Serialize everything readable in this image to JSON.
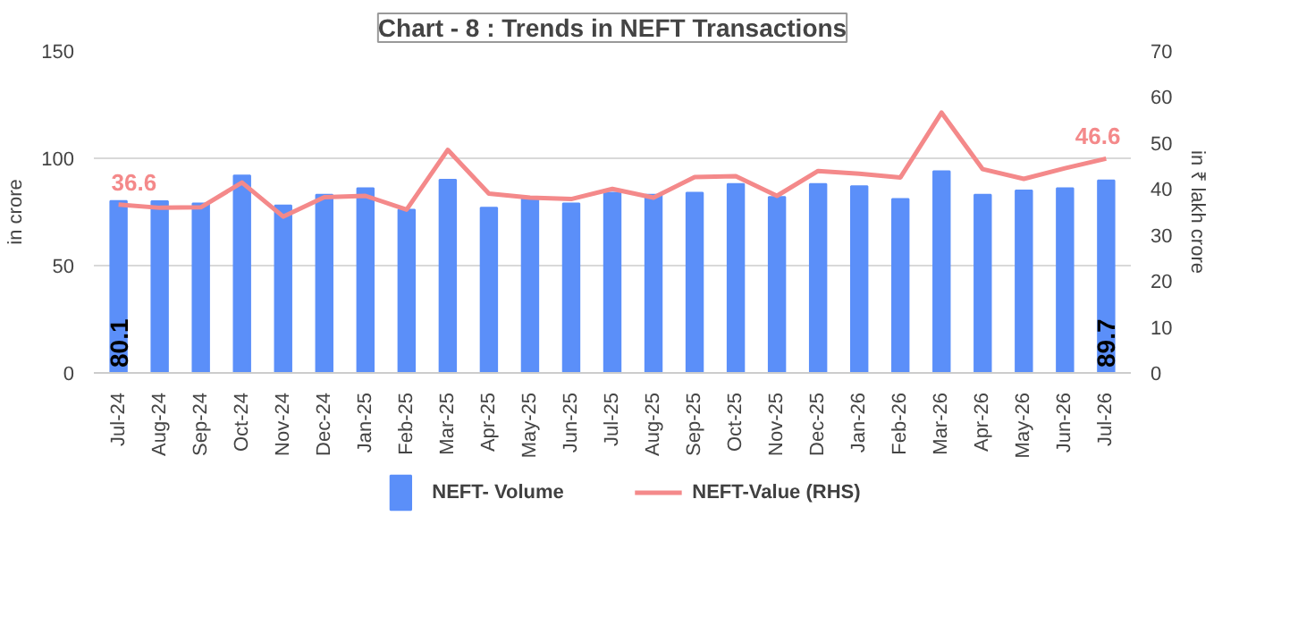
{
  "chart_data": {
    "type": "bar",
    "title": "Chart - 8 : Trends in NEFT Transactions",
    "ylabel": "in crore",
    "y2label": "in ₹ lakh crore",
    "categories": [
      "Jul-24",
      "Aug-24",
      "Sep-24",
      "Oct-24",
      "Nov-24",
      "Dec-24",
      "Jan-25",
      "Feb-25",
      "Mar-25",
      "Apr-25",
      "May-25",
      "Jun-25",
      "Jul-25",
      "Aug-25",
      "Sep-25",
      "Oct-25",
      "Nov-25",
      "Dec-25",
      "Jan-26",
      "Feb-26",
      "Mar-26",
      "Apr-26",
      "May-26",
      "Jun-26",
      "Jul-26"
    ],
    "series": [
      {
        "name": "NEFT- Volume",
        "color": "#5b8ff9",
        "values": [
          80.1,
          80,
          79,
          92,
          78,
          83,
          86,
          76,
          90,
          77,
          81,
          79,
          84,
          83,
          84,
          88,
          82,
          88,
          87,
          81,
          94,
          83,
          85,
          86,
          89.7
        ],
        "value_labels": [
          "80.1",
          null,
          null,
          null,
          null,
          null,
          null,
          null,
          null,
          null,
          null,
          null,
          null,
          null,
          null,
          null,
          null,
          null,
          null,
          null,
          null,
          null,
          null,
          null,
          "89.7"
        ]
      },
      {
        "name": "NEFT-Value (RHS)",
        "type": "line",
        "axis": "y2",
        "color": "#f4898a",
        "values": [
          36.6,
          35.9,
          36,
          41.4,
          34,
          38.2,
          38.5,
          35.5,
          48.5,
          39,
          38.1,
          37.8,
          40,
          38.1,
          42.6,
          42.8,
          38.5,
          43.9,
          43.3,
          42.5,
          56.6,
          44.3,
          42.2,
          44.5,
          46.6
        ],
        "value_labels": [
          "36.6",
          null,
          null,
          null,
          null,
          null,
          null,
          null,
          null,
          null,
          null,
          null,
          null,
          null,
          null,
          null,
          null,
          null,
          null,
          null,
          null,
          null,
          null,
          null,
          "46.6"
        ]
      }
    ],
    "ylim": [
      0,
      150
    ],
    "yticks": [
      0,
      50,
      100,
      150
    ],
    "y2lim": [
      0,
      70
    ],
    "y2ticks": [
      0,
      10,
      20,
      30,
      40,
      50,
      60,
      70
    ],
    "grid": "y",
    "legend": "bottom",
    "marker": "none",
    "line_style": "solid"
  }
}
